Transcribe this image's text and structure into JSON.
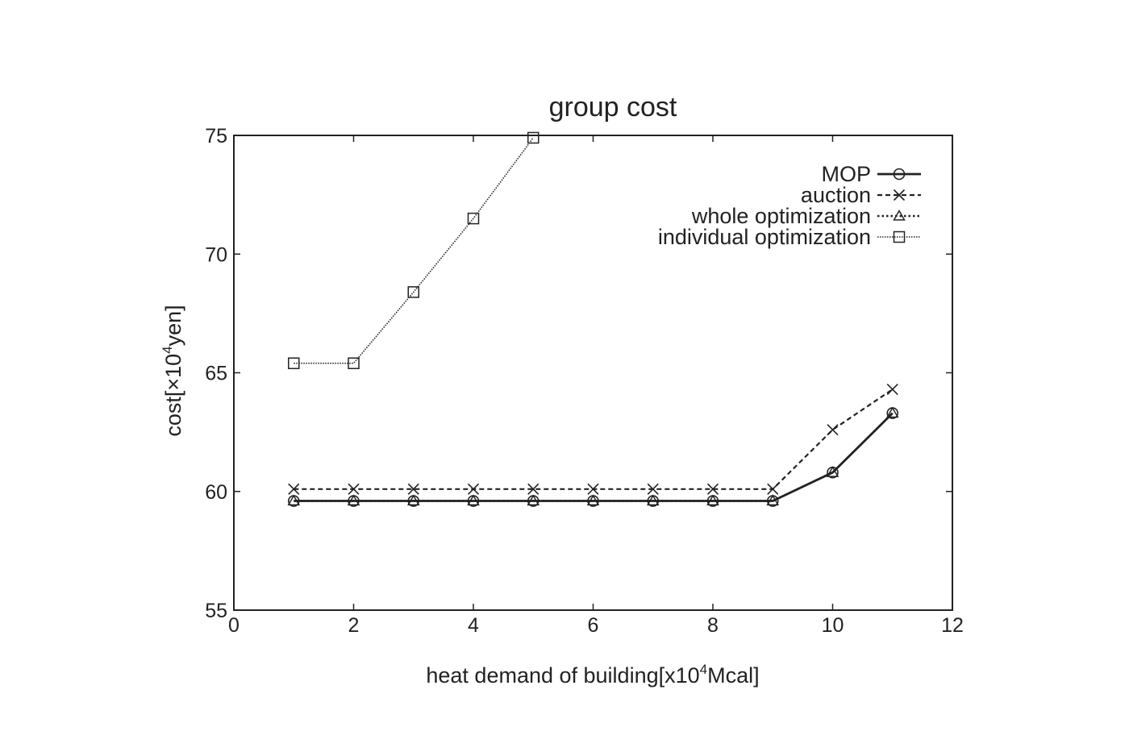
{
  "chart_data": {
    "type": "line",
    "title": "group cost",
    "xlabel": {
      "main": "heat demand of building[x10",
      "sup": "4",
      "tail": "Mcal]"
    },
    "ylabel": {
      "main": "cost[×10",
      "sup": "4",
      "tail": "yen]"
    },
    "xlim": [
      0,
      12
    ],
    "ylim": [
      55,
      75
    ],
    "xticks": [
      0,
      2,
      4,
      6,
      8,
      10,
      12
    ],
    "yticks": [
      55,
      60,
      65,
      70,
      75
    ],
    "grid": false,
    "legend_position": "top-right",
    "series": [
      {
        "name": "MOP",
        "style": "solid",
        "marker": "circle",
        "color": "#222222",
        "x": [
          1,
          2,
          3,
          4,
          5,
          6,
          7,
          8,
          9,
          10,
          11
        ],
        "y": [
          59.6,
          59.6,
          59.6,
          59.6,
          59.6,
          59.6,
          59.6,
          59.6,
          59.6,
          60.8,
          63.3
        ]
      },
      {
        "name": "auction",
        "style": "dashed",
        "marker": "x",
        "color": "#222222",
        "x": [
          1,
          2,
          3,
          4,
          5,
          6,
          7,
          8,
          9,
          10,
          11
        ],
        "y": [
          60.1,
          60.1,
          60.1,
          60.1,
          60.1,
          60.1,
          60.1,
          60.1,
          60.1,
          62.6,
          64.3
        ]
      },
      {
        "name": "whole optimization",
        "style": "dotted",
        "marker": "triangle",
        "color": "#222222",
        "x": [
          1,
          2,
          3,
          4,
          5,
          6,
          7,
          8,
          9,
          10,
          11
        ],
        "y": [
          59.6,
          59.6,
          59.6,
          59.6,
          59.6,
          59.6,
          59.6,
          59.6,
          59.6,
          60.8,
          63.3
        ]
      },
      {
        "name": "individual optimization",
        "style": "fine-dotted",
        "marker": "square",
        "color": "#222222",
        "x": [
          1,
          2,
          3,
          4,
          5
        ],
        "y": [
          65.4,
          65.4,
          68.4,
          71.5,
          74.9
        ]
      }
    ]
  }
}
